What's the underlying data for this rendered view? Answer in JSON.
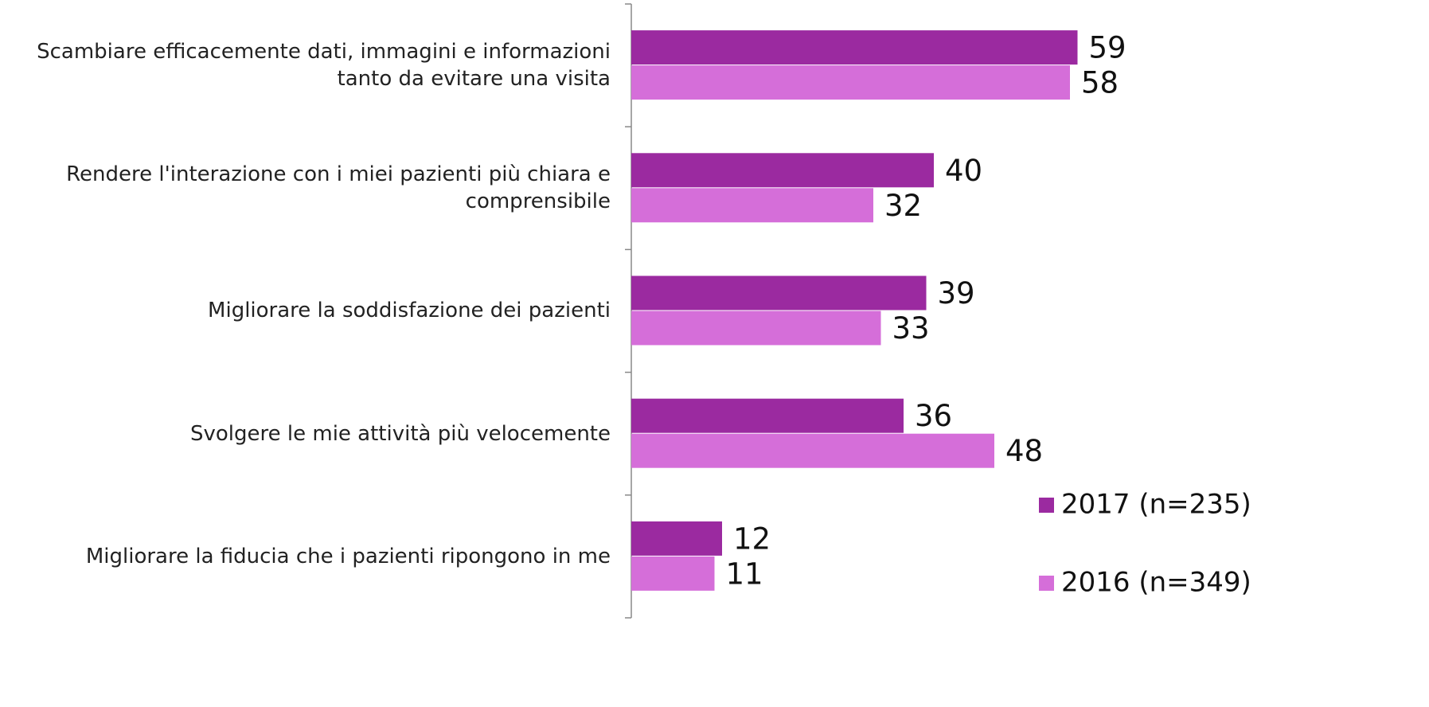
{
  "chart_data": {
    "type": "hbar",
    "categories": [
      "Scambiare efficacemente dati, immagini e informazioni tanto da evitare una visita",
      "Rendere l'interazione con i miei pazienti più chiara e comprensibile",
      "Migliorare la soddisfazione dei pazienti",
      "Svolgere le mie attività più velocemente",
      "Migliorare la fiducia che i pazienti ripongono in me"
    ],
    "series": [
      {
        "name": "2017 (n=235)",
        "color": "#9b2aa0",
        "values": [
          59,
          40,
          39,
          36,
          12
        ]
      },
      {
        "name": "2016 (n=349)",
        "color": "#d56ed9",
        "values": [
          58,
          32,
          33,
          48,
          11
        ]
      }
    ],
    "xlim": [
      0,
      100
    ],
    "legend": "right"
  }
}
